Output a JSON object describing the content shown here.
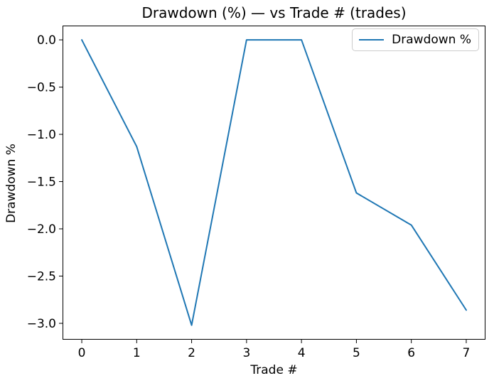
{
  "chart_data": {
    "type": "line",
    "title": "Drawdown (%) — vs Trade # (trades)",
    "xlabel": "Trade #",
    "ylabel": "Drawdown %",
    "grid": false,
    "legend_position": "upper right",
    "line_color": "#1f77b4",
    "x": [
      0,
      1,
      2,
      3,
      4,
      5,
      6,
      7
    ],
    "series": [
      {
        "name": "Drawdown %",
        "color": "#1f77b4",
        "values": [
          0.0,
          -1.13,
          -3.02,
          0.0,
          0.0,
          -1.62,
          -1.96,
          -2.86
        ]
      }
    ],
    "xlim": [
      -0.35,
      7.35
    ],
    "ylim": [
      -3.173,
      0.151
    ],
    "x_ticks": [
      0,
      1,
      2,
      3,
      4,
      5,
      6,
      7
    ],
    "x_tick_labels": [
      "0",
      "1",
      "2",
      "3",
      "4",
      "5",
      "6",
      "7"
    ],
    "y_ticks": [
      0.0,
      -0.5,
      -1.0,
      -1.5,
      -2.0,
      -2.5,
      -3.0
    ],
    "y_tick_labels": [
      "0.0",
      "−0.5",
      "−1.0",
      "−1.5",
      "−2.0",
      "−2.5",
      "−3.0"
    ]
  }
}
